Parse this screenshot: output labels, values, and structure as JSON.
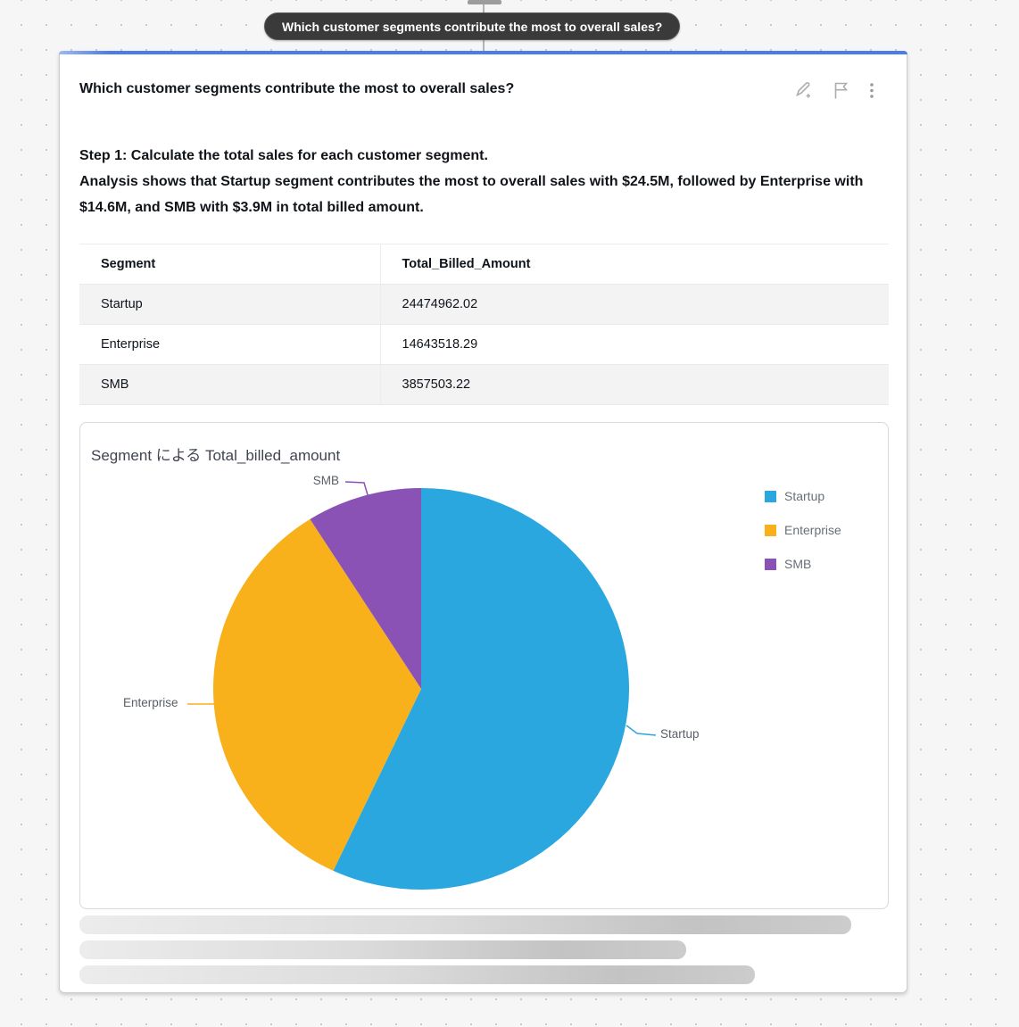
{
  "question_pill": {
    "label": "Which customer segments contribute the most to overall sales?"
  },
  "card": {
    "title": "Which customer segments contribute the most to overall sales?",
    "analysis_step": "Step 1: Calculate the total sales for each customer segment.",
    "analysis_summary": "Analysis shows that Startup segment contributes the most to overall sales with $24.5M, followed by Enterprise with $14.6M, and SMB with $3.9M in total billed amount.",
    "table": {
      "columns": [
        "Segment",
        "Total_Billed_Amount"
      ],
      "rows": [
        [
          "Startup",
          "24474962.02"
        ],
        [
          "Enterprise",
          "14643518.29"
        ],
        [
          "SMB",
          "3857503.22"
        ]
      ]
    }
  },
  "chart_data": {
    "type": "pie",
    "title": "Segment による Total_billed_amount",
    "categories": [
      "Startup",
      "Enterprise",
      "SMB"
    ],
    "values": [
      24474962.02,
      14643518.29,
      3857503.22
    ],
    "colors": [
      "#2BA7E0",
      "#F8B11B",
      "#8A52B5"
    ],
    "legend": [
      "Startup",
      "Enterprise",
      "SMB"
    ],
    "legend_position": "right",
    "start_angle_deg": 0,
    "direction": "clockwise",
    "callouts": {
      "startup": "Startup",
      "enterprise": "Enterprise",
      "smb": "SMB"
    }
  }
}
